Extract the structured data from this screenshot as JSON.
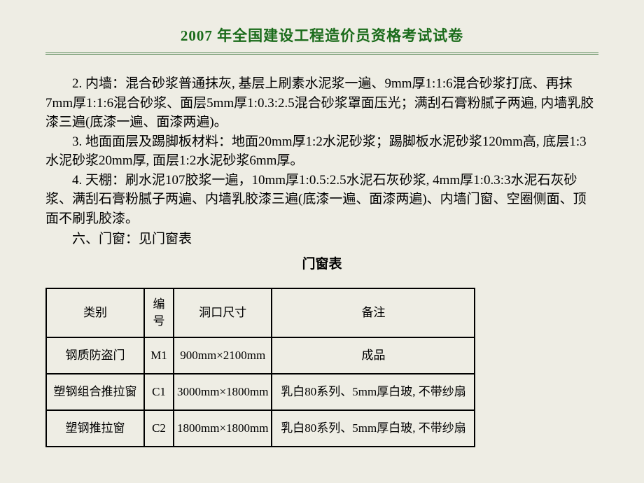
{
  "header": {
    "title": "2007 年全国建设工程造价员资格考试试卷"
  },
  "paragraphs": {
    "p2": "2. 内墙：混合砂浆普通抹灰, 基层上刷素水泥浆一遍、9mm厚1:1:6混合砂浆打底、再抹7mm厚1:1:6混合砂浆、面层5mm厚1:0.3:2.5混合砂浆罩面压光；满刮石膏粉腻子两遍, 内墙乳胶漆三遍(底漆一遍、面漆两遍)。",
    "p3": "3. 地面面层及踢脚板材料：地面20mm厚1:2水泥砂浆；踢脚板水泥砂浆120mm高, 底层1:3水泥砂浆20mm厚, 面层1:2水泥砂浆6mm厚。",
    "p4": "4. 天棚：刷水泥107胶浆一遍，10mm厚1:0.5:2.5水泥石灰砂浆, 4mm厚1:0.3:3水泥石灰砂浆、满刮石膏粉腻子两遍、内墙乳胶漆三遍(底漆一遍、面漆两遍)、内墙门窗、空圈侧面、顶面不刷乳胶漆。",
    "section6": "六、门窗：见门窗表"
  },
  "table": {
    "title": "门窗表",
    "headers": {
      "category": "类别",
      "code": "编号",
      "dimension": "洞口尺寸",
      "remark": "备注"
    },
    "rows": [
      {
        "category": "钢质防盗门",
        "code": "M1",
        "dimension": "900mm×2100mm",
        "remark": "成品"
      },
      {
        "category": "塑钢组合推拉窗",
        "code": "C1",
        "dimension": "3000mm×1800mm",
        "remark": "乳白80系列、5mm厚白玻, 不带纱扇"
      },
      {
        "category": "塑钢推拉窗",
        "code": "C2",
        "dimension": "1800mm×1800mm",
        "remark": "乳白80系列、5mm厚白玻, 不带纱扇"
      }
    ]
  },
  "styles": {
    "background_color": "#eeede4",
    "title_color": "#1a6b1a",
    "border_color": "#5a8a5a",
    "text_color": "#000000",
    "table_border": "#000000",
    "title_fontsize": 21,
    "body_fontsize": 19,
    "table_fontsize": 17
  }
}
